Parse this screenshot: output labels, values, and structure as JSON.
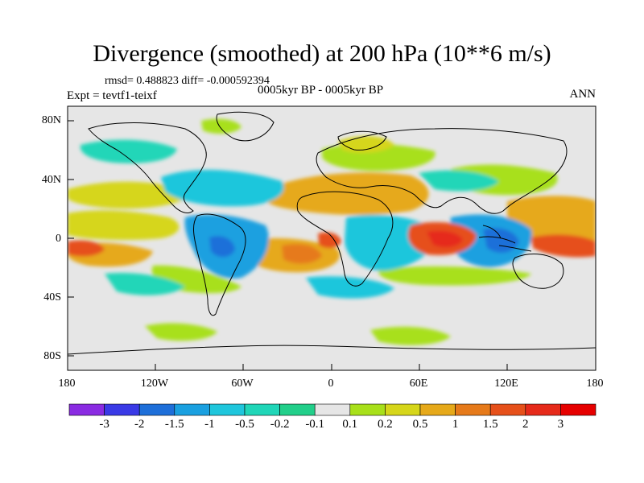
{
  "title": "Divergence (smoothed) at 200 hPa (10**6 m/s)",
  "stats": "rmsd= 0.488823 diff= -0.000592394",
  "experiment": "Expt = tevtf1-teixf",
  "period": "0005kyr BP - 0005kyr BP",
  "season": "ANN",
  "lat_labels": [
    "80N",
    "40N",
    "0",
    "40S",
    "80S"
  ],
  "lon_labels": [
    "180",
    "120W",
    "60W",
    "0",
    "60E",
    "120E",
    "180"
  ],
  "colorbar": {
    "labels": [
      "-3",
      "-2",
      "-1.5",
      "-1",
      "-0.5",
      "-0.2",
      "-0.1",
      "0.1",
      "0.2",
      "0.5",
      "1",
      "1.5",
      "2",
      "3"
    ],
    "colors": [
      "#8a2be2",
      "#3a3ae6",
      "#1e6fd9",
      "#1aa0e0",
      "#1fc6dc",
      "#20d6b8",
      "#22cf8a",
      "#e6e6e6",
      "#a8e01a",
      "#d6d61a",
      "#e6a91a",
      "#e67a1a",
      "#e6501a",
      "#e62a1a",
      "#e60000"
    ]
  },
  "colors": {
    "background": "#e6e6e6",
    "coastline": "#000000"
  }
}
